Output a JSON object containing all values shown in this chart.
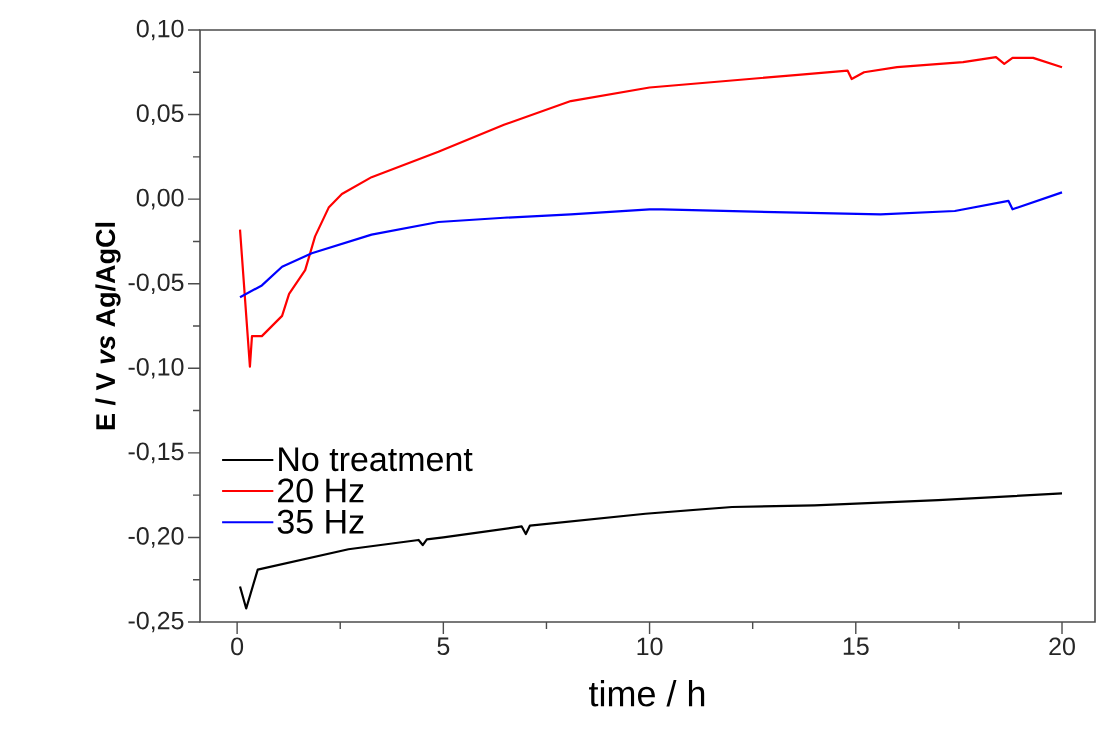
{
  "chart_data": {
    "type": "line",
    "xlabel": "time / h",
    "ylabel": "E / V *vs* Ag/AgCl",
    "xlim": [
      -0.9,
      20.8
    ],
    "ylim": [
      -0.25,
      0.1
    ],
    "xticks": [
      0,
      5,
      10,
      15,
      20
    ],
    "yticks": [
      {
        "value": 0.1,
        "label": "0,10"
      },
      {
        "value": 0.05,
        "label": "0,05"
      },
      {
        "value": 0,
        "label": "0,00"
      },
      {
        "value": -0.05,
        "label": "-0,05"
      },
      {
        "value": -0.1,
        "label": "-0,10"
      },
      {
        "value": -0.15,
        "label": "-0,15"
      },
      {
        "value": -0.2,
        "label": "-0,20"
      },
      {
        "value": -0.25,
        "label": "-0,25"
      }
    ],
    "legend": "bottom left",
    "grid": false,
    "marker": "none",
    "line_style": "solid",
    "series": [
      {
        "name": "No treatment",
        "color": "#000000",
        "x": [
          0.07,
          0.22,
          0.5,
          2.7,
          4.4,
          4.5,
          4.6,
          5.0,
          6.9,
          7.0,
          7.1,
          9.9,
          12.0,
          14.0,
          17.0,
          20.0
        ],
        "values": [
          -0.229,
          -0.242,
          -0.219,
          -0.207,
          -0.2015,
          -0.2045,
          -0.2012,
          -0.2,
          -0.1935,
          -0.198,
          -0.193,
          -0.186,
          -0.182,
          -0.181,
          -0.178,
          -0.174
        ]
      },
      {
        "name": "20 Hz",
        "color": "#ff0000",
        "x": [
          0.07,
          0.31,
          0.36,
          0.6,
          1.09,
          1.26,
          1.65,
          1.89,
          2.22,
          2.54,
          3.26,
          4.88,
          6.47,
          8.09,
          10.0,
          13.6,
          14.8,
          14.9,
          15.2,
          16.0,
          17.6,
          18.4,
          18.6,
          18.8,
          19.3,
          20.0
        ],
        "values": [
          -0.018,
          -0.099,
          -0.081,
          -0.081,
          -0.069,
          -0.056,
          -0.042,
          -0.022,
          -0.005,
          0.003,
          0.013,
          0.028,
          0.044,
          0.058,
          0.066,
          0.0735,
          0.076,
          0.071,
          0.075,
          0.078,
          0.081,
          0.084,
          0.08,
          0.0835,
          0.0835,
          0.078
        ]
      },
      {
        "name": "35 Hz",
        "color": "#0000ff",
        "x": [
          0.07,
          0.6,
          1.09,
          1.81,
          3.26,
          4.88,
          6.47,
          8.09,
          10.0,
          10.3,
          13.6,
          15.6,
          17.4,
          18.7,
          18.8,
          20.0
        ],
        "values": [
          -0.058,
          -0.051,
          -0.04,
          -0.032,
          -0.021,
          -0.0135,
          -0.011,
          -0.009,
          -0.006,
          -0.006,
          -0.008,
          -0.009,
          -0.007,
          -0.001,
          -0.006,
          0.004
        ]
      }
    ]
  }
}
